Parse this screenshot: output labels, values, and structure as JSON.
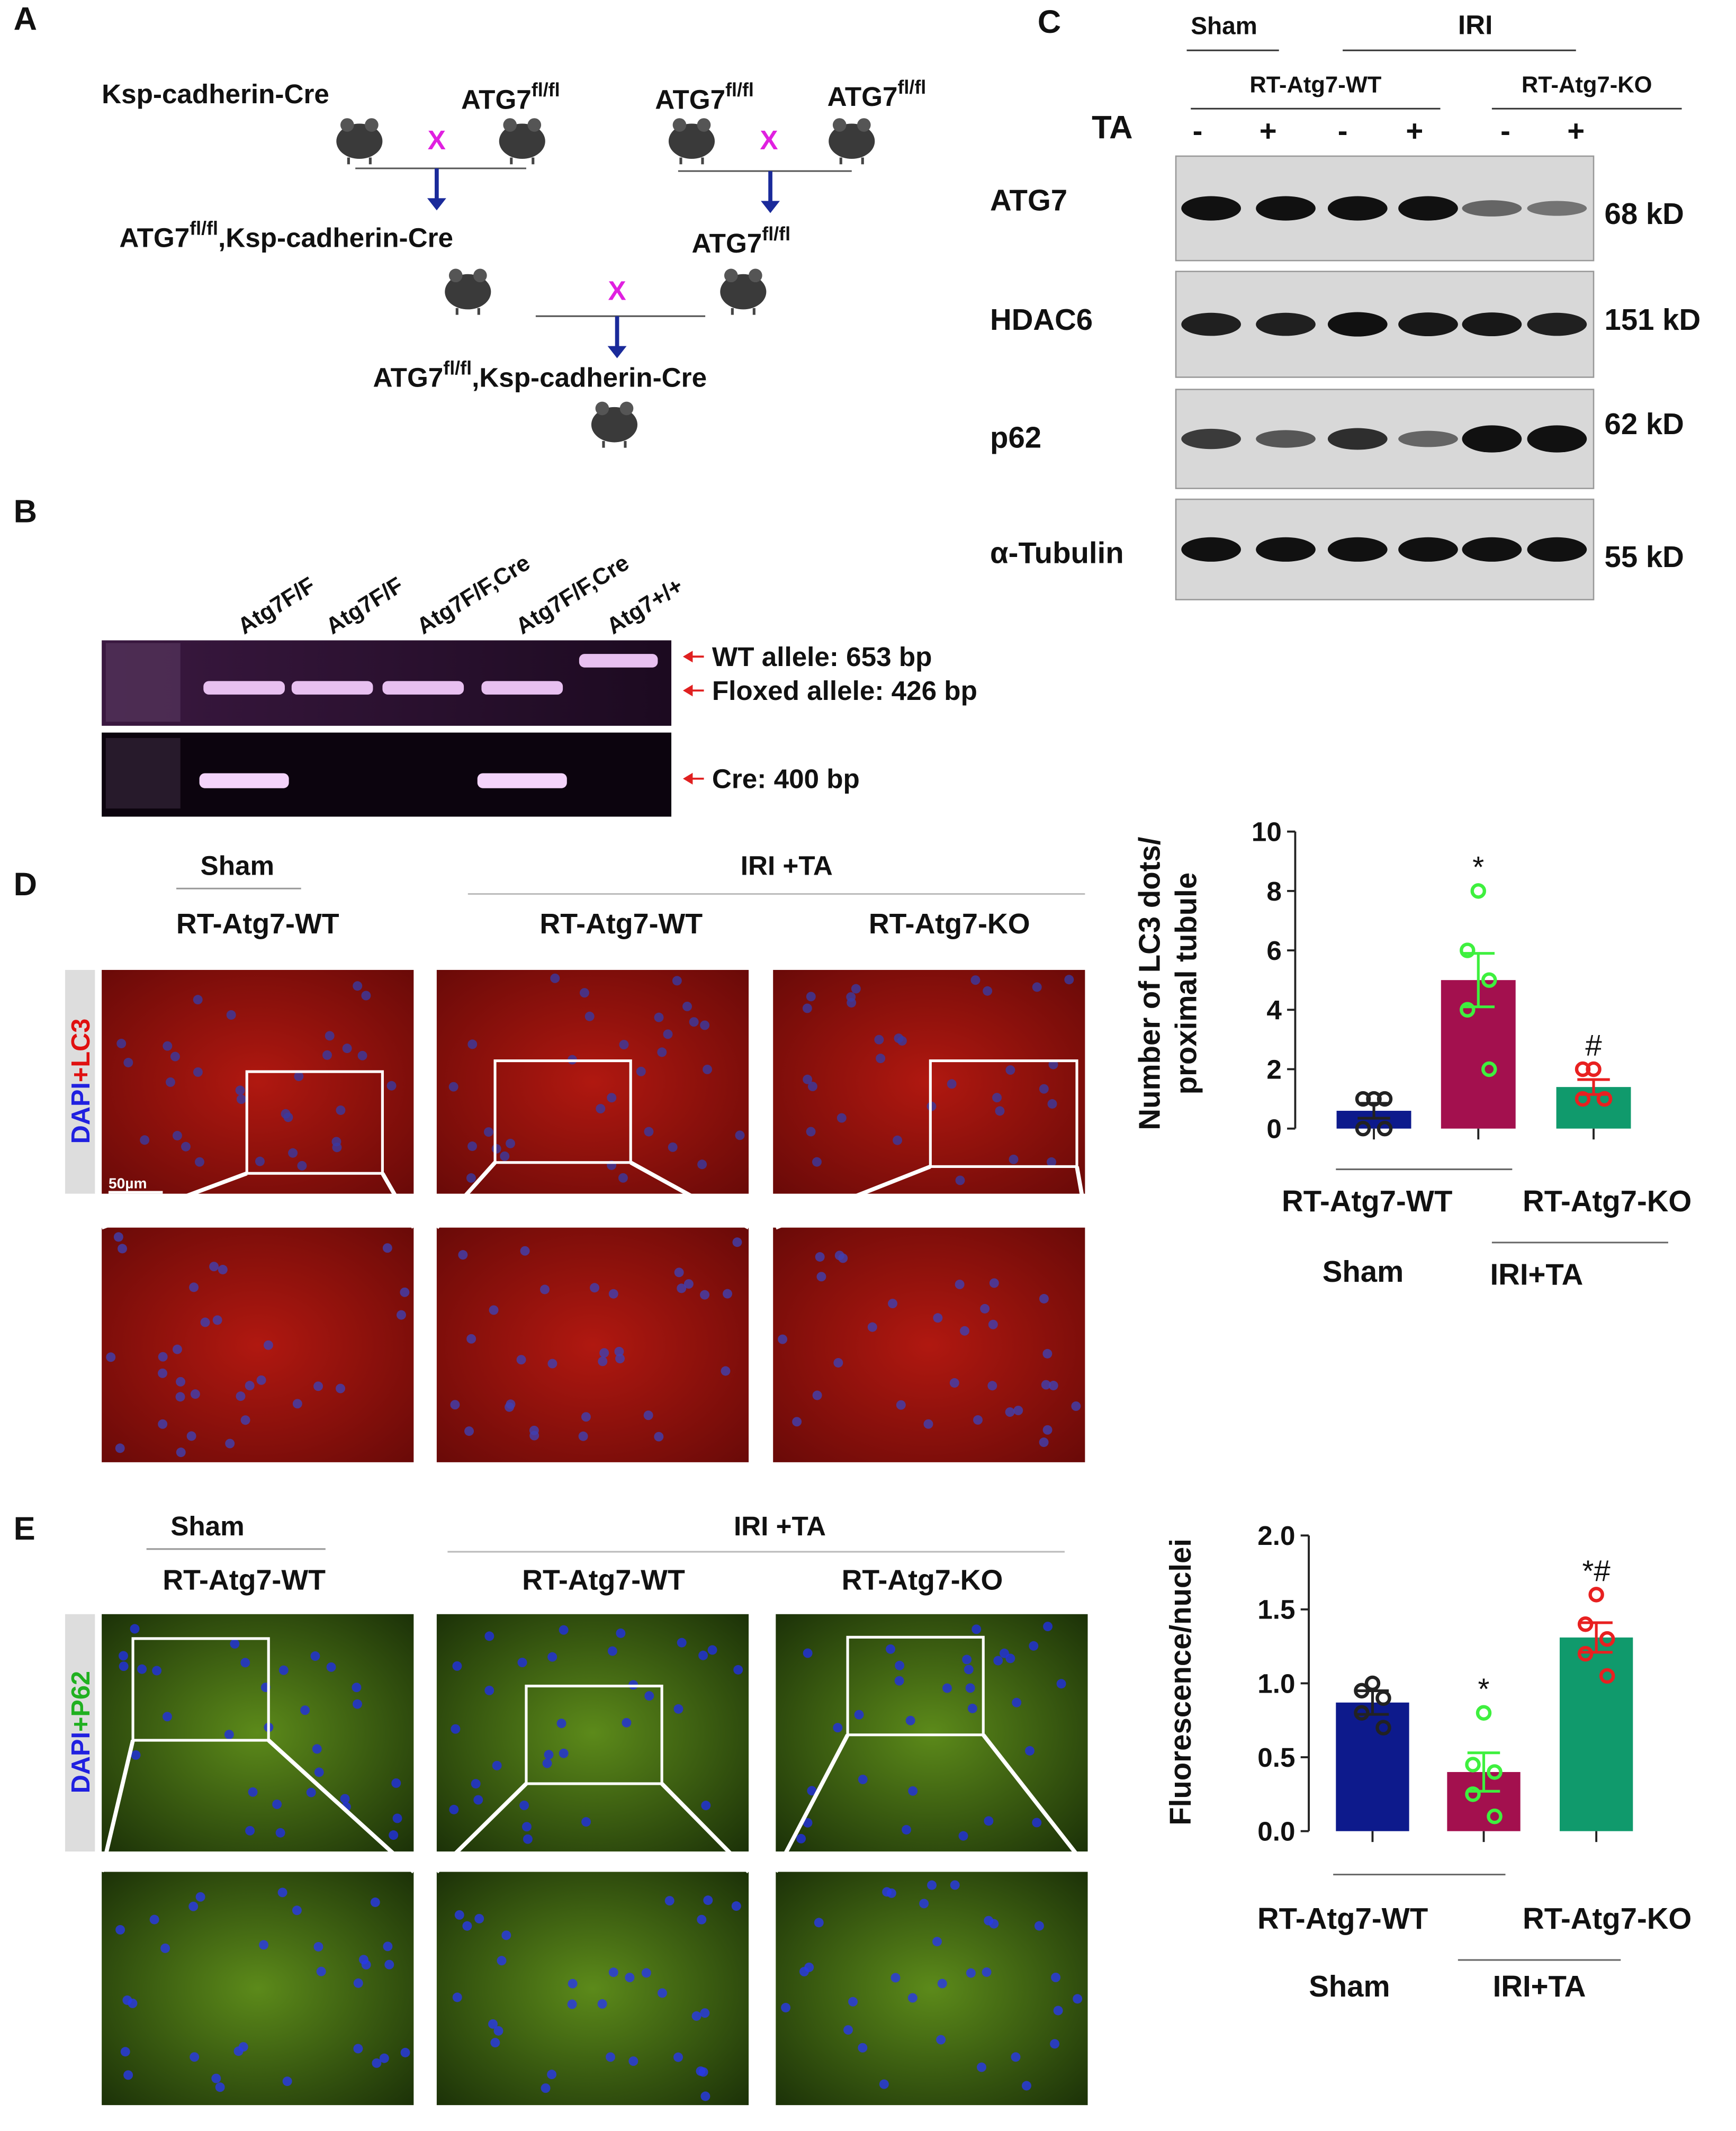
{
  "panel_a": {
    "label": "A",
    "cross": "X",
    "parents_1": [
      "Ksp-cadherin-Cre",
      [
        "ATG7",
        "fl/fl"
      ]
    ],
    "parents_2": [
      [
        "ATG7",
        "fl/fl"
      ],
      [
        "ATG7",
        "fl/fl"
      ]
    ],
    "offspring_1": [
      "ATG7",
      "fl/fl",
      ",Ksp-cadherin-Cre"
    ],
    "offspring_2": [
      "ATG7",
      "fl/fl"
    ],
    "result": [
      "ATG7",
      "fl/fl",
      ",Ksp-cadherin-Cre"
    ]
  },
  "panel_b": {
    "label": "B",
    "lanes": [
      "Atg7F/F",
      "Atg7F/F",
      "Atg7F/F,Cre",
      "Atg7F/F,Cre",
      "Atg7+/+"
    ],
    "bands": [
      "WT allele: 653 bp",
      "Floxed allele: 426 bp",
      "Cre: 400 bp"
    ]
  },
  "panel_c": {
    "label": "C",
    "sham": "Sham",
    "iri": "IRI",
    "groups": [
      "RT-Atg7-WT",
      "RT-Atg7-KO"
    ],
    "ta": "TA",
    "signs": [
      "-",
      "+",
      "-",
      "+",
      "-",
      "+"
    ],
    "rows": [
      {
        "protein": "ATG7",
        "size": "68 kD"
      },
      {
        "protein": "HDAC6",
        "size": "151 kD"
      },
      {
        "protein": "p62",
        "size": "62 kD"
      },
      {
        "protein": "α-Tubulin",
        "size": "55 kD"
      }
    ]
  },
  "panel_d": {
    "label": "D",
    "sham": "Sham",
    "iri": "IRI +TA",
    "columns": [
      "RT-Atg7-WT",
      "RT-Atg7-WT",
      "RT-Atg7-KO"
    ],
    "stain": [
      "DAPI",
      "+LC3"
    ],
    "scale_bar": "50µm"
  },
  "panel_e": {
    "label": "E",
    "sham": "Sham",
    "iri": "IRI +TA",
    "columns": [
      "RT-Atg7-WT",
      "RT-Atg7-WT",
      "RT-Atg7-KO"
    ],
    "stain": [
      "DAPI",
      "+P62"
    ]
  },
  "chart_data": [
    {
      "type": "bar",
      "ylabel": [
        "Number of LC3 dots/",
        "proximal tubule"
      ],
      "categories": [
        null,
        null,
        null
      ],
      "values": [
        0.6,
        5.0,
        1.4
      ],
      "errors": [
        0.25,
        0.9,
        0.25
      ],
      "points": [
        [
          1,
          1,
          1,
          0,
          0
        ],
        [
          8,
          6,
          5,
          4,
          2
        ],
        [
          2,
          2,
          1,
          1,
          1
        ]
      ],
      "colors": [
        "#0d1a8c",
        "#a3104e",
        "#109a6c"
      ],
      "point_colors": [
        "#222222",
        "#3ef03e",
        "#e82020"
      ],
      "annotations": [
        null,
        "*",
        "#"
      ],
      "ylim": [
        0,
        10
      ],
      "yticks": [
        0,
        2,
        4,
        6,
        8,
        10
      ],
      "x_labels": [
        "RT-Atg7-WT",
        "RT-Atg7-KO"
      ],
      "group_labels": [
        "Sham",
        "IRI+TA"
      ]
    },
    {
      "type": "bar",
      "ylabel": [
        "Fluorescence/nuclei"
      ],
      "categories": [
        null,
        null,
        null
      ],
      "values": [
        0.87,
        0.4,
        1.31
      ],
      "errors": [
        0.08,
        0.13,
        0.1
      ],
      "points": [
        [
          1.0,
          0.95,
          0.9,
          0.8,
          0.7
        ],
        [
          0.8,
          0.45,
          0.4,
          0.25,
          0.1
        ],
        [
          1.6,
          1.4,
          1.3,
          1.2,
          1.05
        ]
      ],
      "colors": [
        "#0d1a8c",
        "#a3104e",
        "#109a6c"
      ],
      "point_colors": [
        "#222222",
        "#3ef03e",
        "#e82020"
      ],
      "annotations": [
        null,
        "*",
        "*#"
      ],
      "ylim": [
        0,
        2
      ],
      "yticks": [
        {
          "value": 0,
          "label": "0.0"
        },
        {
          "value": 0.5,
          "label": "0.5"
        },
        {
          "value": 1,
          "label": "1.0"
        },
        {
          "value": 1.5,
          "label": "1.5"
        },
        {
          "value": 2,
          "label": "2.0"
        }
      ],
      "x_labels": [
        "RT-Atg7-WT",
        "RT-Atg7-KO"
      ],
      "group_labels": [
        "Sham",
        "IRI+TA"
      ]
    }
  ]
}
